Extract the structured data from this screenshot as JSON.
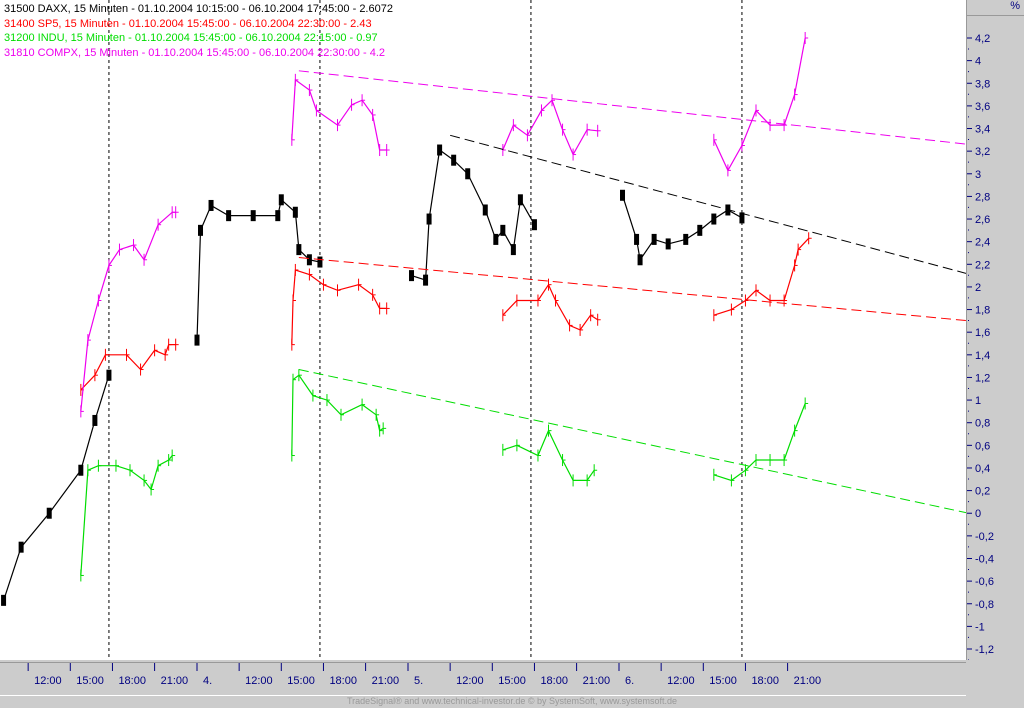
{
  "legend": [
    {
      "id": "31500",
      "text": "31500  DAXX, 15 Minuten - 01.10.2004 10:15:00 - 06.10.2004 17:45:00 - 2.6072",
      "color": "#000000"
    },
    {
      "id": "31400",
      "text": "31400  SP5, 15 Minuten - 01.10.2004 15:45:00 - 06.10.2004 22:30:00 - 2.43",
      "color": "#ff0000"
    },
    {
      "id": "31200",
      "text": "31200  INDU, 15 Minuten - 01.10.2004 15:45:00 - 06.10.2004 22:15:00 - 0.97",
      "color": "#00dd00"
    },
    {
      "id": "31810",
      "text": "31810  COMPX, 15 Minuten - 01.10.2004 15:45:00 - 06.10.2004 22:30:00 - 4.2",
      "color": "#ee00ee"
    }
  ],
  "axis_unit": "%",
  "credit": "TradeSignal® and www.technical-investor.de © by SystemSoft, www.systemsoft.de",
  "chart_data": {
    "type": "line",
    "ylim": [
      -1.3,
      4.3
    ],
    "yticks": [
      "4,2",
      "4",
      "3,8",
      "3,6",
      "3,4",
      "3,2",
      "3",
      "2,8",
      "2,6",
      "2,4",
      "2,2",
      "2",
      "1,8",
      "1,6",
      "1,4",
      "1,2",
      "1",
      "0,8",
      "0,6",
      "0,4",
      "0,2",
      "0",
      "-0,2",
      "-0,4",
      "-0,6",
      "-0,8",
      "-1",
      "-1,2"
    ],
    "xticks": [
      {
        "label": "12:00",
        "t": "01.10 12:00"
      },
      {
        "label": "15:00",
        "t": "01.10 15:00"
      },
      {
        "label": "18:00",
        "t": "01.10 18:00"
      },
      {
        "label": "21:00",
        "t": "01.10 21:00"
      },
      {
        "label": "4.",
        "t": "04.10 09:00"
      },
      {
        "label": "12:00",
        "t": "04.10 12:00"
      },
      {
        "label": "15:00",
        "t": "04.10 15:00"
      },
      {
        "label": "18:00",
        "t": "04.10 18:00"
      },
      {
        "label": "21:00",
        "t": "04.10 21:00"
      },
      {
        "label": "5.",
        "t": "05.10 09:00"
      },
      {
        "label": "12:00",
        "t": "05.10 12:00"
      },
      {
        "label": "15:00",
        "t": "05.10 15:00"
      },
      {
        "label": "18:00",
        "t": "05.10 18:00"
      },
      {
        "label": "21:00",
        "t": "05.10 21:00"
      },
      {
        "label": "6.",
        "t": "06.10 09:00"
      },
      {
        "label": "12:00",
        "t": "06.10 12:00"
      },
      {
        "label": "15:00",
        "t": "06.10 15:00"
      },
      {
        "label": "18:00",
        "t": "06.10 18:00"
      },
      {
        "label": "21:00",
        "t": "06.10 21:00"
      }
    ],
    "event_lines": [
      "01.10 17:45",
      "04.10 17:45",
      "05.10 17:45",
      "06.10 17:45"
    ],
    "series": [
      {
        "name": "DAXX",
        "color": "#000000",
        "points": [
          [
            "01.10 10:15",
            -0.77
          ],
          [
            "01.10 11:30",
            -0.3
          ],
          [
            "01.10 13:30",
            0.0
          ],
          [
            "01.10 15:45",
            0.38
          ],
          [
            "01.10 16:45",
            0.82
          ],
          [
            "01.10 17:45",
            1.22
          ],
          [
            "04.10 09:00",
            1.53
          ],
          [
            "04.10 09:15",
            2.5
          ],
          [
            "04.10 10:00",
            2.72
          ],
          [
            "04.10 11:15",
            2.63
          ],
          [
            "04.10 13:00",
            2.63
          ],
          [
            "04.10 14:45",
            2.63
          ],
          [
            "04.10 15:00",
            2.77
          ],
          [
            "04.10 16:00",
            2.66
          ],
          [
            "04.10 16:15",
            2.33
          ],
          [
            "04.10 17:00",
            2.24
          ],
          [
            "04.10 17:45",
            2.22
          ],
          [
            "05.10 09:15",
            2.1
          ],
          [
            "05.10 10:15",
            2.06
          ],
          [
            "05.10 10:30",
            2.6
          ],
          [
            "05.10 11:15",
            3.21
          ],
          [
            "05.10 12:15",
            3.12
          ],
          [
            "05.10 13:15",
            3.0
          ],
          [
            "05.10 14:30",
            2.68
          ],
          [
            "05.10 15:15",
            2.42
          ],
          [
            "05.10 15:45",
            2.5
          ],
          [
            "05.10 16:30",
            2.33
          ],
          [
            "05.10 17:00",
            2.77
          ],
          [
            "05.10 18:00",
            2.55
          ],
          [
            "06.10 09:15",
            2.81
          ],
          [
            "06.10 10:15",
            2.42
          ],
          [
            "06.10 10:30",
            2.24
          ],
          [
            "06.10 11:30",
            2.42
          ],
          [
            "06.10 12:30",
            2.38
          ],
          [
            "06.10 13:45",
            2.42
          ],
          [
            "06.10 14:45",
            2.5
          ],
          [
            "06.10 15:45",
            2.6
          ],
          [
            "06.10 16:45",
            2.68
          ],
          [
            "06.10 17:45",
            2.61
          ]
        ]
      },
      {
        "name": "SP5",
        "color": "#ff0000",
        "points": [
          [
            "01.10 15:45",
            1.09
          ],
          [
            "01.10 16:45",
            1.22
          ],
          [
            "01.10 17:30",
            1.4
          ],
          [
            "01.10 19:00",
            1.4
          ],
          [
            "01.10 20:00",
            1.27
          ],
          [
            "01.10 21:00",
            1.44
          ],
          [
            "01.10 21:45",
            1.4
          ],
          [
            "01.10 22:00",
            1.49
          ],
          [
            "01.10 22:30",
            1.49
          ],
          [
            "04.10 15:45",
            1.49
          ],
          [
            "04.10 15:50",
            1.88
          ],
          [
            "04.10 16:00",
            2.15
          ],
          [
            "04.10 17:00",
            2.11
          ],
          [
            "04.10 18:00",
            2.02
          ],
          [
            "04.10 19:00",
            1.97
          ],
          [
            "04.10 20:30",
            2.02
          ],
          [
            "04.10 21:30",
            1.93
          ],
          [
            "04.10 22:00",
            1.81
          ],
          [
            "04.10 22:30",
            1.81
          ],
          [
            "05.10 15:45",
            1.75
          ],
          [
            "05.10 16:45",
            1.88
          ],
          [
            "05.10 18:15",
            1.88
          ],
          [
            "05.10 19:00",
            2.02
          ],
          [
            "05.10 19:30",
            1.88
          ],
          [
            "05.10 20:30",
            1.66
          ],
          [
            "05.10 21:15",
            1.62
          ],
          [
            "05.10 22:00",
            1.75
          ],
          [
            "05.10 22:30",
            1.71
          ],
          [
            "06.10 15:45",
            1.75
          ],
          [
            "06.10 17:00",
            1.8
          ],
          [
            "06.10 18:00",
            1.88
          ],
          [
            "06.10 18:45",
            1.97
          ],
          [
            "06.10 19:45",
            1.88
          ],
          [
            "06.10 20:45",
            1.88
          ],
          [
            "06.10 21:30",
            2.19
          ],
          [
            "06.10 21:45",
            2.33
          ],
          [
            "06.10 22:30",
            2.43
          ]
        ]
      },
      {
        "name": "INDU",
        "color": "#00dd00",
        "points": [
          [
            "01.10 15:45",
            -0.55
          ],
          [
            "01.10 16:15",
            0.38
          ],
          [
            "01.10 17:00",
            0.42
          ],
          [
            "01.10 18:15",
            0.42
          ],
          [
            "01.10 19:15",
            0.38
          ],
          [
            "01.10 20:15",
            0.29
          ],
          [
            "01.10 20:45",
            0.21
          ],
          [
            "01.10 21:15",
            0.42
          ],
          [
            "01.10 22:00",
            0.47
          ],
          [
            "01.10 22:15",
            0.51
          ],
          [
            "04.10 15:45",
            0.51
          ],
          [
            "04.10 15:50",
            1.18
          ],
          [
            "04.10 16:15",
            1.22
          ],
          [
            "04.10 17:15",
            1.04
          ],
          [
            "04.10 18:15",
            1.0
          ],
          [
            "04.10 19:15",
            0.87
          ],
          [
            "04.10 20:45",
            0.96
          ],
          [
            "04.10 21:45",
            0.87
          ],
          [
            "04.10 22:00",
            0.73
          ],
          [
            "04.10 22:15",
            0.75
          ],
          [
            "05.10 15:45",
            0.56
          ],
          [
            "05.10 16:45",
            0.6
          ],
          [
            "05.10 18:15",
            0.51
          ],
          [
            "05.10 19:00",
            0.73
          ],
          [
            "05.10 20:00",
            0.47
          ],
          [
            "05.10 20:45",
            0.29
          ],
          [
            "05.10 21:45",
            0.29
          ],
          [
            "05.10 22:15",
            0.38
          ],
          [
            "06.10 15:45",
            0.34
          ],
          [
            "06.10 17:00",
            0.29
          ],
          [
            "06.10 18:00",
            0.38
          ],
          [
            "06.10 18:45",
            0.47
          ],
          [
            "06.10 19:45",
            0.47
          ],
          [
            "06.10 20:45",
            0.47
          ],
          [
            "06.10 21:30",
            0.73
          ],
          [
            "06.10 22:15",
            0.97
          ]
        ]
      },
      {
        "name": "COMPX",
        "color": "#ee00ee",
        "points": [
          [
            "01.10 15:45",
            0.9
          ],
          [
            "01.10 16:15",
            1.53
          ],
          [
            "01.10 17:00",
            1.88
          ],
          [
            "01.10 17:45",
            2.19
          ],
          [
            "01.10 18:30",
            2.33
          ],
          [
            "01.10 19:30",
            2.37
          ],
          [
            "01.10 20:15",
            2.24
          ],
          [
            "01.10 21:15",
            2.55
          ],
          [
            "01.10 22:15",
            2.66
          ],
          [
            "01.10 22:30",
            2.66
          ],
          [
            "04.10 15:45",
            3.3
          ],
          [
            "04.10 16:00",
            3.83
          ],
          [
            "04.10 17:00",
            3.74
          ],
          [
            "04.10 17:30",
            3.56
          ],
          [
            "04.10 19:00",
            3.43
          ],
          [
            "04.10 20:00",
            3.61
          ],
          [
            "04.10 20:45",
            3.65
          ],
          [
            "04.10 21:30",
            3.52
          ],
          [
            "04.10 22:00",
            3.21
          ],
          [
            "04.10 22:30",
            3.21
          ],
          [
            "05.10 15:45",
            3.21
          ],
          [
            "05.10 16:30",
            3.43
          ],
          [
            "05.10 17:30",
            3.34
          ],
          [
            "05.10 18:30",
            3.56
          ],
          [
            "05.10 19:15",
            3.65
          ],
          [
            "05.10 20:00",
            3.39
          ],
          [
            "05.10 20:45",
            3.17
          ],
          [
            "05.10 21:45",
            3.39
          ],
          [
            "05.10 22:30",
            3.38
          ],
          [
            "06.10 15:45",
            3.3
          ],
          [
            "06.10 16:45",
            3.03
          ],
          [
            "06.10 17:45",
            3.25
          ],
          [
            "06.10 18:45",
            3.56
          ],
          [
            "06.10 19:45",
            3.43
          ],
          [
            "06.10 20:45",
            3.43
          ],
          [
            "06.10 21:30",
            3.7
          ],
          [
            "06.10 22:15",
            4.2
          ]
        ]
      }
    ],
    "trend_lines": [
      {
        "color": "#000000",
        "from": [
          "05.10 12:00",
          3.34
        ],
        "to": [
          "06.10 17:45",
          2.65
        ]
      },
      {
        "color": "#ff0000",
        "from": [
          "04.10 16:15",
          2.26
        ],
        "to": [
          "06.10 17:45",
          1.89
        ]
      },
      {
        "color": "#00dd00",
        "from": [
          "04.10 16:15",
          1.27
        ],
        "to": [
          "06.10 17:45",
          0.43
        ]
      },
      {
        "color": "#ee00ee",
        "from": [
          "04.10 16:15",
          3.91
        ],
        "to": [
          "06.10 17:45",
          3.48
        ]
      }
    ]
  }
}
